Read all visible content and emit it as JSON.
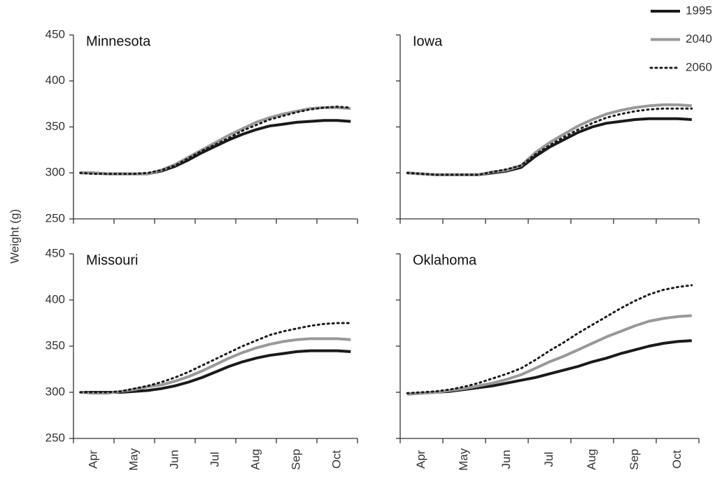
{
  "chart_data": [
    {
      "type": "line",
      "title": "Minnesota",
      "ylabel": "Weight (g)",
      "ylim": [
        250,
        450
      ],
      "yticks": [
        250,
        300,
        350,
        400,
        450
      ],
      "series": [
        {
          "name": "1995",
          "color": "#1a1a1a",
          "style": "solid",
          "values": [
            300,
            300,
            299,
            299,
            299,
            299,
            302,
            307,
            314,
            322,
            329,
            336,
            342,
            347,
            351,
            353,
            355,
            356,
            357,
            357,
            356
          ]
        },
        {
          "name": "2040",
          "color": "#999999",
          "style": "solid",
          "values": [
            300,
            300,
            299,
            299,
            299,
            299,
            303,
            309,
            317,
            325,
            333,
            341,
            348,
            355,
            360,
            364,
            367,
            370,
            371,
            371,
            370
          ]
        },
        {
          "name": "2060",
          "color": "#1a1a1a",
          "style": "dotted",
          "values": [
            300,
            299,
            299,
            299,
            299,
            300,
            303,
            308,
            316,
            324,
            331,
            338,
            346,
            352,
            358,
            362,
            366,
            369,
            371,
            372,
            371
          ]
        }
      ]
    },
    {
      "type": "line",
      "title": "Iowa",
      "ylim": [
        250,
        450
      ],
      "yticks": [
        250,
        300,
        350,
        400,
        450
      ],
      "series": [
        {
          "name": "1995",
          "color": "#1a1a1a",
          "style": "solid",
          "values": [
            300,
            299,
            298,
            298,
            298,
            298,
            300,
            302,
            306,
            318,
            328,
            336,
            344,
            350,
            354,
            356,
            358,
            359,
            359,
            359,
            358
          ]
        },
        {
          "name": "2040",
          "color": "#999999",
          "style": "solid",
          "values": [
            300,
            299,
            298,
            298,
            298,
            298,
            301,
            303,
            308,
            322,
            333,
            342,
            351,
            358,
            364,
            368,
            371,
            373,
            374,
            374,
            373
          ]
        },
        {
          "name": "2060",
          "color": "#1a1a1a",
          "style": "dotted",
          "values": [
            300,
            299,
            298,
            298,
            298,
            298,
            301,
            304,
            308,
            320,
            330,
            339,
            347,
            354,
            360,
            364,
            367,
            369,
            370,
            370,
            370
          ]
        }
      ]
    },
    {
      "type": "line",
      "title": "Missouri",
      "ylim": [
        250,
        450
      ],
      "yticks": [
        250,
        300,
        350,
        400,
        450
      ],
      "categories": [
        null,
        "Apr",
        null,
        null,
        "May",
        null,
        null,
        "Jun",
        null,
        null,
        "Jul",
        null,
        null,
        "Aug",
        null,
        null,
        "Sep",
        null,
        null,
        "Oct",
        null
      ],
      "series": [
        {
          "name": "1995",
          "color": "#1a1a1a",
          "style": "solid",
          "values": [
            300,
            300,
            300,
            300,
            301,
            302,
            304,
            307,
            311,
            316,
            322,
            328,
            333,
            337,
            340,
            342,
            344,
            345,
            345,
            345,
            344
          ]
        },
        {
          "name": "2040",
          "color": "#999999",
          "style": "solid",
          "values": [
            300,
            299,
            299,
            301,
            303,
            306,
            308,
            312,
            317,
            323,
            330,
            337,
            343,
            348,
            352,
            355,
            357,
            358,
            358,
            358,
            357
          ]
        },
        {
          "name": "2060",
          "color": "#1a1a1a",
          "style": "dotted",
          "values": [
            300,
            300,
            300,
            301,
            304,
            307,
            311,
            316,
            322,
            329,
            336,
            343,
            350,
            356,
            362,
            366,
            369,
            372,
            374,
            375,
            375
          ]
        }
      ]
    },
    {
      "type": "line",
      "title": "Oklahoma",
      "ylim": [
        250,
        450
      ],
      "yticks": [
        250,
        300,
        350,
        400,
        450
      ],
      "categories": [
        null,
        "Apr",
        null,
        null,
        "May",
        null,
        null,
        "Jun",
        null,
        null,
        "Jul",
        null,
        null,
        "Aug",
        null,
        null,
        "Sep",
        null,
        null,
        "Oct",
        null
      ],
      "series": [
        {
          "name": "1995",
          "color": "#1a1a1a",
          "style": "solid",
          "values": [
            298,
            299,
            300,
            301,
            303,
            305,
            307,
            310,
            313,
            316,
            320,
            324,
            328,
            333,
            337,
            342,
            346,
            350,
            353,
            355,
            356
          ]
        },
        {
          "name": "2040",
          "color": "#999999",
          "style": "solid",
          "values": [
            298,
            299,
            300,
            302,
            304,
            307,
            310,
            314,
            319,
            326,
            333,
            339,
            346,
            353,
            360,
            366,
            372,
            377,
            380,
            382,
            383
          ]
        },
        {
          "name": "2060",
          "color": "#1a1a1a",
          "style": "dotted",
          "values": [
            299,
            300,
            301,
            303,
            306,
            310,
            315,
            320,
            326,
            335,
            345,
            354,
            364,
            373,
            382,
            391,
            399,
            406,
            411,
            414,
            416
          ]
        }
      ]
    }
  ]
}
